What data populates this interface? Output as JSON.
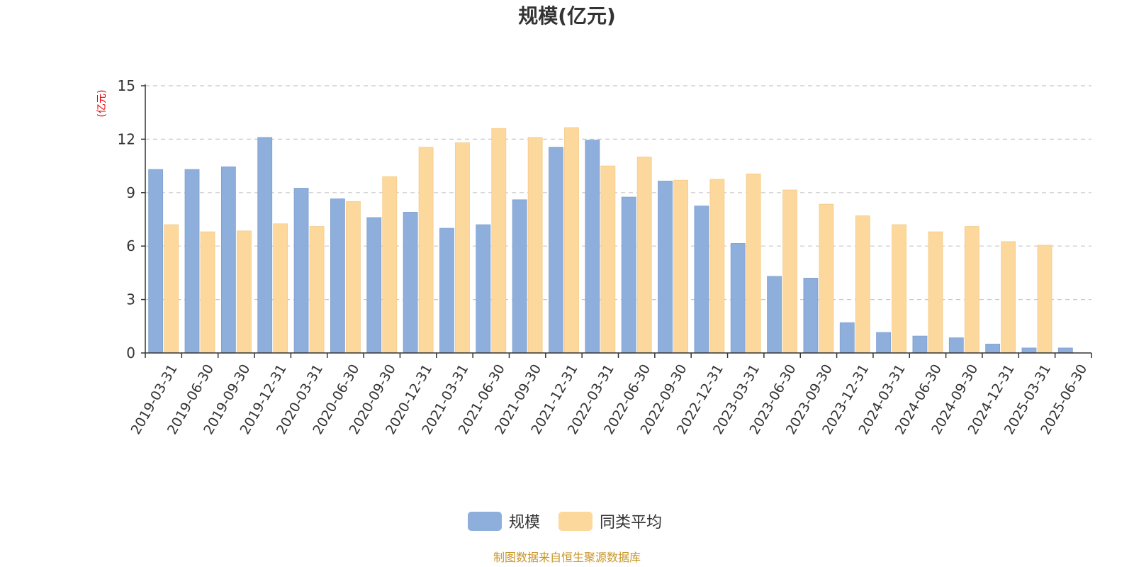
{
  "chart_data": {
    "type": "bar",
    "title": "规模(亿元)",
    "ylabel": "(亿元)",
    "ylim": [
      0,
      15
    ],
    "yticks": [
      0,
      3,
      6,
      9,
      12,
      15
    ],
    "grid": "horizontal-dashed",
    "legend_position": "bottom-center",
    "categories": [
      "2019-03-31",
      "2019-06-30",
      "2019-09-30",
      "2019-12-31",
      "2020-03-31",
      "2020-06-30",
      "2020-09-30",
      "2020-12-31",
      "2021-03-31",
      "2021-06-30",
      "2021-09-30",
      "2021-12-31",
      "2022-03-31",
      "2022-06-30",
      "2022-09-30",
      "2022-12-31",
      "2023-03-31",
      "2023-06-30",
      "2023-09-30",
      "2023-12-31",
      "2024-03-31",
      "2024-06-30",
      "2024-09-30",
      "2024-12-31",
      "2025-03-31",
      "2025-06-30"
    ],
    "series": [
      {
        "name": "规模",
        "color": "#8eaedc",
        "values": [
          10.3,
          10.3,
          10.45,
          12.1,
          9.25,
          8.65,
          7.6,
          7.9,
          7.0,
          7.2,
          8.6,
          11.55,
          11.95,
          8.75,
          9.65,
          8.25,
          6.15,
          4.3,
          4.2,
          1.7,
          1.15,
          0.95,
          0.85,
          0.5,
          0.28,
          0.28
        ]
      },
      {
        "name": "同类平均",
        "color": "#fdd89d",
        "values": [
          7.2,
          6.8,
          6.85,
          7.25,
          7.1,
          8.5,
          9.9,
          11.55,
          11.8,
          12.6,
          12.1,
          12.65,
          10.5,
          11.0,
          9.7,
          9.75,
          10.05,
          9.15,
          8.35,
          7.7,
          7.2,
          6.8,
          7.1,
          6.25,
          6.05,
          null
        ]
      }
    ],
    "source": "制图数据来自恒生聚源数据库"
  },
  "colors": {
    "axis": "#333333",
    "grid": "#c8c8c8",
    "ylabel": "#e60000",
    "source": "#c8962a"
  }
}
